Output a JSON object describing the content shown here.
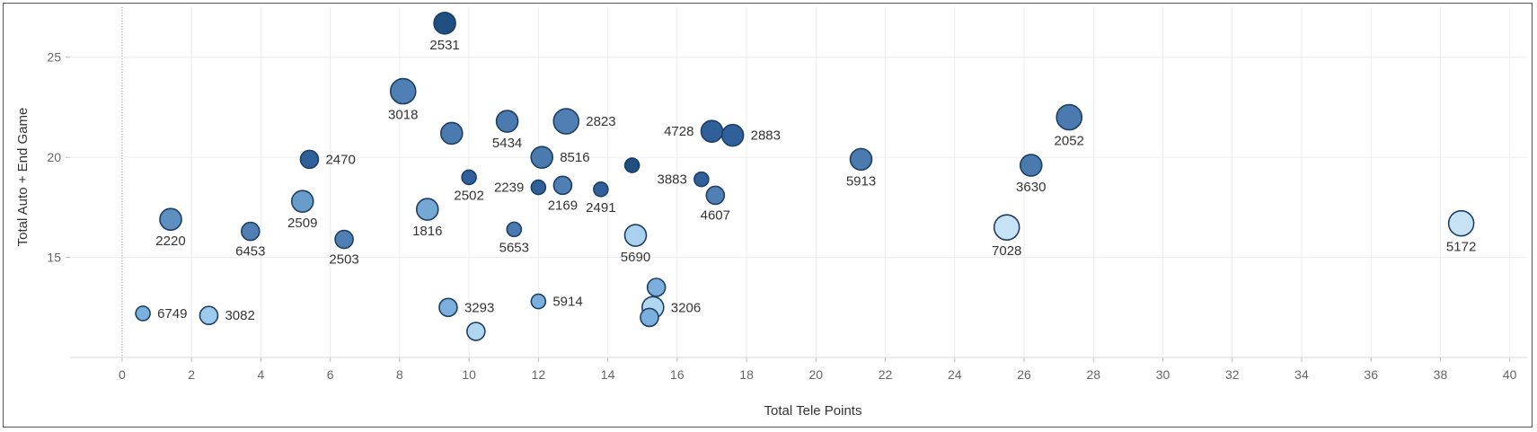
{
  "chart_data": {
    "type": "scatter",
    "title": "",
    "xlabel": "Total Tele Points",
    "ylabel": "Total Auto + End Game",
    "xlim": [
      -1.5,
      40.5
    ],
    "ylim": [
      10,
      27.5
    ],
    "x_ticks": [
      0,
      2,
      4,
      6,
      8,
      10,
      12,
      14,
      16,
      18,
      20,
      22,
      24,
      26,
      28,
      30,
      32,
      34,
      36,
      38,
      40
    ],
    "y_ticks": [
      15,
      20,
      25
    ],
    "grid": true,
    "legend": "none",
    "points": [
      {
        "label": "2531",
        "x": 9.3,
        "y": 26.7,
        "size": 3,
        "color": "#1f4e80",
        "label_pos": "below"
      },
      {
        "label": "3018",
        "x": 8.1,
        "y": 23.3,
        "size": 4,
        "color": "#4f7fb3",
        "label_pos": "below"
      },
      {
        "label": "",
        "x": 9.5,
        "y": 21.2,
        "size": 3,
        "color": "#4a7aae"
      },
      {
        "label": "5434",
        "x": 11.1,
        "y": 21.8,
        "size": 3,
        "color": "#4a7aae",
        "label_pos": "below"
      },
      {
        "label": "2823",
        "x": 12.8,
        "y": 21.8,
        "size": 4,
        "color": "#4f7fb3",
        "label_pos": "right"
      },
      {
        "label": "8516",
        "x": 12.1,
        "y": 20.0,
        "size": 3,
        "color": "#4a7aae",
        "label_pos": "right"
      },
      {
        "label": "",
        "x": 14.7,
        "y": 19.6,
        "size": 1,
        "color": "#1f4e80"
      },
      {
        "label": "4728",
        "x": 17.0,
        "y": 21.3,
        "size": 3,
        "color": "#2f609a",
        "label_pos": "left"
      },
      {
        "label": "2883",
        "x": 17.6,
        "y": 21.1,
        "size": 3,
        "color": "#2f609a",
        "label_pos": "right"
      },
      {
        "label": "2470",
        "x": 5.4,
        "y": 19.9,
        "size": 2,
        "color": "#2f609a",
        "label_pos": "right"
      },
      {
        "label": "2502",
        "x": 10.0,
        "y": 19.0,
        "size": 1,
        "color": "#2f609a",
        "label_pos": "below"
      },
      {
        "label": "2239",
        "x": 12.0,
        "y": 18.5,
        "size": 1,
        "color": "#2f609a",
        "label_pos": "left"
      },
      {
        "label": "2169",
        "x": 12.7,
        "y": 18.6,
        "size": 2,
        "color": "#4f7fb3",
        "label_pos": "below"
      },
      {
        "label": "2491",
        "x": 13.8,
        "y": 18.4,
        "size": 1,
        "color": "#2f609a",
        "label_pos": "below"
      },
      {
        "label": "3883",
        "x": 16.7,
        "y": 18.9,
        "size": 1,
        "color": "#2f609a",
        "label_pos": "left"
      },
      {
        "label": "4607",
        "x": 17.1,
        "y": 18.1,
        "size": 2,
        "color": "#4f7fb3",
        "label_pos": "below"
      },
      {
        "label": "5913",
        "x": 21.3,
        "y": 19.9,
        "size": 3,
        "color": "#4a7aae",
        "label_pos": "below"
      },
      {
        "label": "2052",
        "x": 27.3,
        "y": 22.0,
        "size": 4,
        "color": "#4a7aae",
        "label_pos": "below"
      },
      {
        "label": "3630",
        "x": 26.2,
        "y": 19.6,
        "size": 3,
        "color": "#4a7aae",
        "label_pos": "below"
      },
      {
        "label": "2220",
        "x": 1.4,
        "y": 16.9,
        "size": 3,
        "color": "#5d8fc1",
        "label_pos": "below"
      },
      {
        "label": "6453",
        "x": 3.7,
        "y": 16.3,
        "size": 2,
        "color": "#4f7fb3",
        "label_pos": "below"
      },
      {
        "label": "2509",
        "x": 5.2,
        "y": 17.8,
        "size": 3,
        "color": "#6a9cca",
        "label_pos": "below"
      },
      {
        "label": "2503",
        "x": 6.4,
        "y": 15.9,
        "size": 2,
        "color": "#4f7fb3",
        "label_pos": "below"
      },
      {
        "label": "1816",
        "x": 8.8,
        "y": 17.4,
        "size": 3,
        "color": "#76a8d4",
        "label_pos": "below"
      },
      {
        "label": "5653",
        "x": 11.3,
        "y": 16.4,
        "size": 1,
        "color": "#4a7aae",
        "label_pos": "below"
      },
      {
        "label": "5690",
        "x": 14.8,
        "y": 16.1,
        "size": 3,
        "color": "#a9d0ec",
        "label_pos": "below"
      },
      {
        "label": "7028",
        "x": 25.5,
        "y": 16.5,
        "size": 4,
        "color": "#c7e2f5",
        "label_pos": "below"
      },
      {
        "label": "5172",
        "x": 38.6,
        "y": 16.7,
        "size": 4,
        "color": "#c7e2f5",
        "label_pos": "below"
      },
      {
        "label": "6749",
        "x": 0.6,
        "y": 12.2,
        "size": 1,
        "color": "#7ab0db",
        "label_pos": "right"
      },
      {
        "label": "3082",
        "x": 2.5,
        "y": 12.1,
        "size": 2,
        "color": "#9ccbee",
        "label_pos": "right"
      },
      {
        "label": "3293",
        "x": 9.4,
        "y": 12.5,
        "size": 2,
        "color": "#7ab0db",
        "label_pos": "right"
      },
      {
        "label": "",
        "x": 10.2,
        "y": 11.3,
        "size": 2,
        "color": "#b1d6f1"
      },
      {
        "label": "5914",
        "x": 12.0,
        "y": 12.8,
        "size": 1,
        "color": "#7ab0db",
        "label_pos": "right"
      },
      {
        "label": "",
        "x": 15.4,
        "y": 13.5,
        "size": 2,
        "color": "#7ab0db"
      },
      {
        "label": "3206",
        "x": 15.3,
        "y": 12.5,
        "size": 3,
        "color": "#b1d6f1",
        "label_pos": "right"
      },
      {
        "label": "",
        "x": 15.2,
        "y": 12.0,
        "size": 2,
        "color": "#7ab0db"
      }
    ]
  }
}
